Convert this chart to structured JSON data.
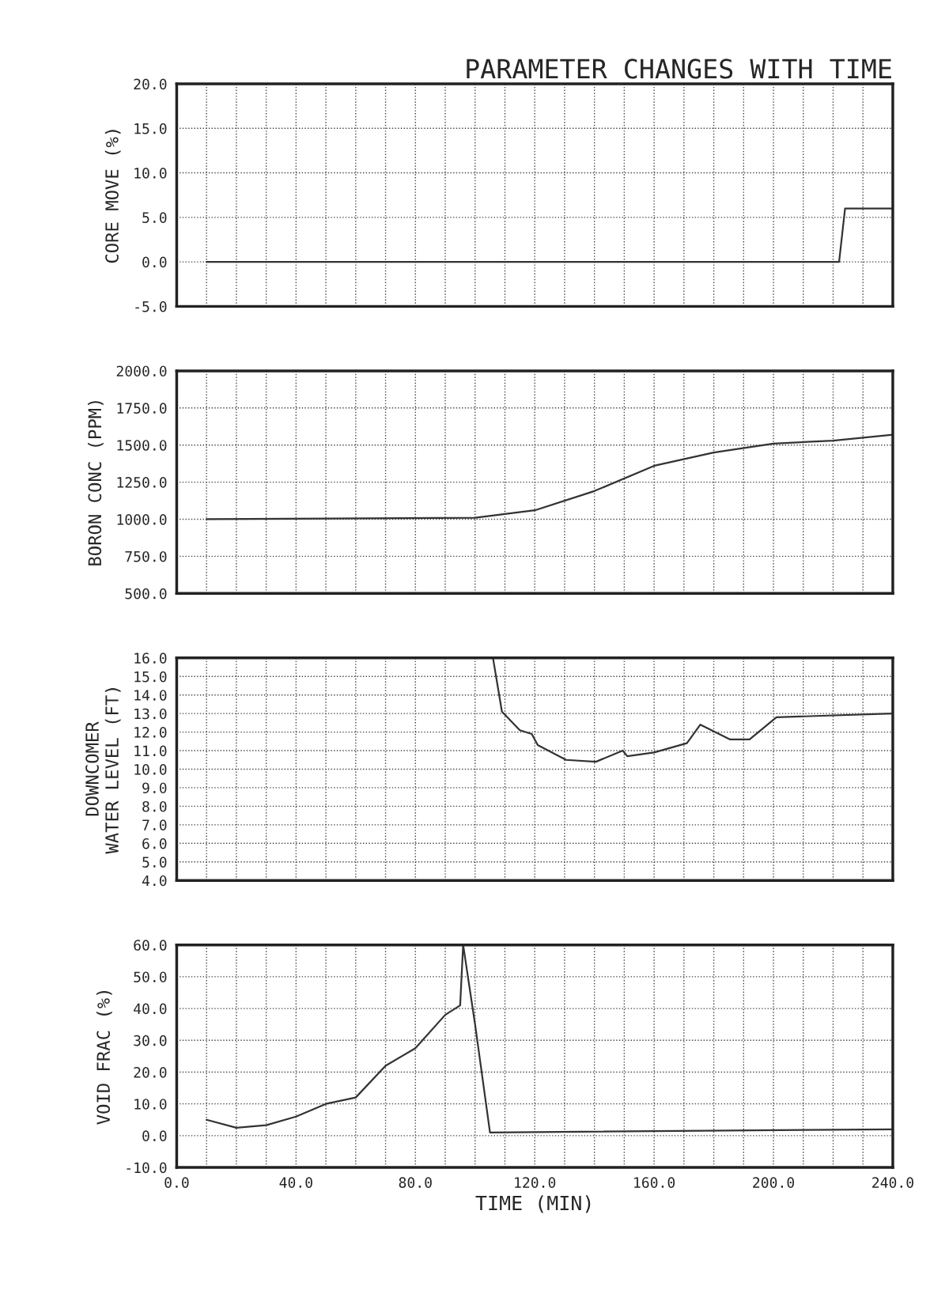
{
  "chart_data": [
    {
      "type": "line",
      "title": "PARAMETER CHANGES WITH TIME",
      "ylabel": "CORE MOVE (%)",
      "xlim": [
        0,
        240
      ],
      "ylim": [
        -5,
        20
      ],
      "xticks": [
        {
          "value": 0,
          "label": null
        },
        {
          "value": 10,
          "label": null
        },
        {
          "value": 20,
          "label": null
        },
        {
          "value": 30,
          "label": null
        },
        {
          "value": 40,
          "label": null
        },
        {
          "value": 50,
          "label": null
        },
        {
          "value": 60,
          "label": null
        },
        {
          "value": 70,
          "label": null
        },
        {
          "value": 80,
          "label": null
        },
        {
          "value": 90,
          "label": null
        },
        {
          "value": 100,
          "label": null
        },
        {
          "value": 110,
          "label": null
        },
        {
          "value": 120,
          "label": null
        },
        {
          "value": 130,
          "label": null
        },
        {
          "value": 140,
          "label": null
        },
        {
          "value": 150,
          "label": null
        },
        {
          "value": 160,
          "label": null
        },
        {
          "value": 170,
          "label": null
        },
        {
          "value": 180,
          "label": null
        },
        {
          "value": 190,
          "label": null
        },
        {
          "value": 200,
          "label": null
        },
        {
          "value": 210,
          "label": null
        },
        {
          "value": 220,
          "label": null
        },
        {
          "value": 230,
          "label": null
        },
        {
          "value": 240,
          "label": null
        }
      ],
      "yticks": [
        {
          "value": -5,
          "label": "-5.0"
        },
        {
          "value": 0,
          "label": "0.0"
        },
        {
          "value": 5,
          "label": "5.0"
        },
        {
          "value": 10,
          "label": "10.0"
        },
        {
          "value": 15,
          "label": "15.0"
        },
        {
          "value": 20,
          "label": "20.0"
        }
      ],
      "grid": true,
      "tick_labels": "y",
      "series": [
        {
          "color": "#333333",
          "x": [
            10,
            222,
            224,
            240
          ],
          "values": [
            0,
            0,
            6,
            6
          ]
        }
      ]
    },
    {
      "type": "line",
      "ylabel": "BORON CONC (PPM)",
      "xlim": [
        0,
        240
      ],
      "ylim": [
        500,
        2000
      ],
      "xticks": [
        {
          "value": 0,
          "label": null
        },
        {
          "value": 10,
          "label": null
        },
        {
          "value": 20,
          "label": null
        },
        {
          "value": 30,
          "label": null
        },
        {
          "value": 40,
          "label": null
        },
        {
          "value": 50,
          "label": null
        },
        {
          "value": 60,
          "label": null
        },
        {
          "value": 70,
          "label": null
        },
        {
          "value": 80,
          "label": null
        },
        {
          "value": 90,
          "label": null
        },
        {
          "value": 100,
          "label": null
        },
        {
          "value": 110,
          "label": null
        },
        {
          "value": 120,
          "label": null
        },
        {
          "value": 130,
          "label": null
        },
        {
          "value": 140,
          "label": null
        },
        {
          "value": 150,
          "label": null
        },
        {
          "value": 160,
          "label": null
        },
        {
          "value": 170,
          "label": null
        },
        {
          "value": 180,
          "label": null
        },
        {
          "value": 190,
          "label": null
        },
        {
          "value": 200,
          "label": null
        },
        {
          "value": 210,
          "label": null
        },
        {
          "value": 220,
          "label": null
        },
        {
          "value": 230,
          "label": null
        },
        {
          "value": 240,
          "label": null
        }
      ],
      "yticks": [
        {
          "value": 500,
          "label": "500.0"
        },
        {
          "value": 750,
          "label": "750.0"
        },
        {
          "value": 1000,
          "label": "1000.0"
        },
        {
          "value": 1250,
          "label": "1250.0"
        },
        {
          "value": 1500,
          "label": "1500.0"
        },
        {
          "value": 1750,
          "label": "1750.0"
        },
        {
          "value": 2000,
          "label": "2000.0"
        }
      ],
      "grid": true,
      "tick_labels": "y",
      "series": [
        {
          "color": "#333333",
          "x": [
            10,
            100,
            120,
            140,
            160,
            180,
            200,
            220,
            240
          ],
          "values": [
            1000,
            1010,
            1060,
            1190,
            1360,
            1450,
            1510,
            1530,
            1570
          ]
        }
      ]
    },
    {
      "type": "line",
      "ylabel": "DOWNCOMER\nWATER LEVEL (FT)",
      "xlim": [
        0,
        240
      ],
      "ylim": [
        4,
        16
      ],
      "xticks": [
        {
          "value": 0,
          "label": null
        },
        {
          "value": 10,
          "label": null
        },
        {
          "value": 20,
          "label": null
        },
        {
          "value": 30,
          "label": null
        },
        {
          "value": 40,
          "label": null
        },
        {
          "value": 50,
          "label": null
        },
        {
          "value": 60,
          "label": null
        },
        {
          "value": 70,
          "label": null
        },
        {
          "value": 80,
          "label": null
        },
        {
          "value": 90,
          "label": null
        },
        {
          "value": 100,
          "label": null
        },
        {
          "value": 110,
          "label": null
        },
        {
          "value": 120,
          "label": null
        },
        {
          "value": 130,
          "label": null
        },
        {
          "value": 140,
          "label": null
        },
        {
          "value": 150,
          "label": null
        },
        {
          "value": 160,
          "label": null
        },
        {
          "value": 170,
          "label": null
        },
        {
          "value": 180,
          "label": null
        },
        {
          "value": 190,
          "label": null
        },
        {
          "value": 200,
          "label": null
        },
        {
          "value": 210,
          "label": null
        },
        {
          "value": 220,
          "label": null
        },
        {
          "value": 230,
          "label": null
        },
        {
          "value": 240,
          "label": null
        }
      ],
      "yticks": [
        {
          "value": 4,
          "label": "4.0"
        },
        {
          "value": 5,
          "label": "5.0"
        },
        {
          "value": 6,
          "label": "6.0"
        },
        {
          "value": 7,
          "label": "7.0"
        },
        {
          "value": 8,
          "label": "8.0"
        },
        {
          "value": 9,
          "label": "9.0"
        },
        {
          "value": 10,
          "label": "10.0"
        },
        {
          "value": 11,
          "label": "11.0"
        },
        {
          "value": 12,
          "label": "12.0"
        },
        {
          "value": 13,
          "label": "13.0"
        },
        {
          "value": 14,
          "label": "14.0"
        },
        {
          "value": 15,
          "label": "15.0"
        },
        {
          "value": 16,
          "label": "16.0"
        }
      ],
      "grid": true,
      "tick_labels": "y",
      "series": [
        {
          "color": "#333333",
          "x": [
            106,
            109,
            115,
            119,
            121,
            130.5,
            140.5,
            149.5,
            151,
            160,
            171,
            175.5,
            185.5,
            192,
            201,
            240
          ],
          "values": [
            16,
            13.1,
            12.1,
            11.9,
            11.3,
            10.5,
            10.4,
            11.0,
            10.7,
            10.9,
            11.4,
            12.4,
            11.6,
            11.6,
            12.8,
            13.0
          ]
        }
      ]
    },
    {
      "type": "line",
      "ylabel": "VOID FRAC (%)",
      "xlabel": "TIME (MIN)",
      "xlim": [
        0,
        240
      ],
      "ylim": [
        -10,
        60
      ],
      "xticks": [
        {
          "value": 0,
          "label": "0.0"
        },
        {
          "value": 10,
          "label": null
        },
        {
          "value": 20,
          "label": null
        },
        {
          "value": 30,
          "label": null
        },
        {
          "value": 40,
          "label": "40.0"
        },
        {
          "value": 50,
          "label": null
        },
        {
          "value": 60,
          "label": null
        },
        {
          "value": 70,
          "label": null
        },
        {
          "value": 80,
          "label": "80.0"
        },
        {
          "value": 90,
          "label": null
        },
        {
          "value": 100,
          "label": null
        },
        {
          "value": 110,
          "label": null
        },
        {
          "value": 120,
          "label": "120.0"
        },
        {
          "value": 130,
          "label": null
        },
        {
          "value": 140,
          "label": null
        },
        {
          "value": 150,
          "label": null
        },
        {
          "value": 160,
          "label": "160.0"
        },
        {
          "value": 170,
          "label": null
        },
        {
          "value": 180,
          "label": null
        },
        {
          "value": 190,
          "label": null
        },
        {
          "value": 200,
          "label": "200.0"
        },
        {
          "value": 210,
          "label": null
        },
        {
          "value": 220,
          "label": null
        },
        {
          "value": 230,
          "label": null
        },
        {
          "value": 240,
          "label": "240.0"
        }
      ],
      "yticks": [
        {
          "value": -10,
          "label": "-10.0"
        },
        {
          "value": 0,
          "label": "0.0"
        },
        {
          "value": 10,
          "label": "10.0"
        },
        {
          "value": 20,
          "label": "20.0"
        },
        {
          "value": 30,
          "label": "30.0"
        },
        {
          "value": 40,
          "label": "40.0"
        },
        {
          "value": 50,
          "label": "50.0"
        },
        {
          "value": 60,
          "label": "60.0"
        }
      ],
      "grid": true,
      "series": [
        {
          "color": "#333333",
          "x": [
            10,
            20,
            30,
            40,
            50,
            60,
            70,
            80,
            90,
            95,
            96,
            100,
            105,
            240
          ],
          "values": [
            5,
            2.5,
            3.3,
            6,
            10,
            12,
            22,
            27.5,
            38,
            41,
            60,
            35,
            1,
            2
          ]
        }
      ]
    }
  ]
}
